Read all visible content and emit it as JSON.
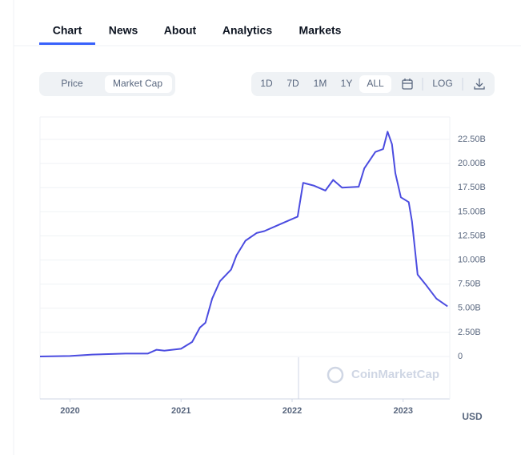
{
  "tabs": [
    "Chart",
    "News",
    "About",
    "Analytics",
    "Markets"
  ],
  "toggle": [
    "Price",
    "Market Cap"
  ],
  "ranges": [
    "1D",
    "7D",
    "1M",
    "1Y",
    "ALL"
  ],
  "log_label": "LOG",
  "chart_data": {
    "type": "line",
    "color": "#4b4ce0",
    "annotation": "CoinMarketCap",
    "y_label": "USD",
    "x": [
      2019.73,
      2020.0,
      2020.2,
      2020.5,
      2020.7,
      2020.78,
      2020.85,
      2021.0,
      2021.1,
      2021.17,
      2021.22,
      2021.28,
      2021.35,
      2021.45,
      2021.5,
      2021.58,
      2021.68,
      2021.75,
      2021.85,
      2021.95,
      2022.05,
      2022.1,
      2022.2,
      2022.3,
      2022.37,
      2022.45,
      2022.6,
      2022.65,
      2022.75,
      2022.82,
      2022.86,
      2022.9,
      2022.93,
      2022.98,
      2023.05,
      2023.08,
      2023.13,
      2023.2,
      2023.3,
      2023.4
    ],
    "values": [
      0,
      0.05,
      0.2,
      0.3,
      0.3,
      0.7,
      0.6,
      0.8,
      1.5,
      3,
      3.5,
      6,
      7.8,
      9,
      10.5,
      12,
      12.8,
      13,
      13.5,
      14,
      14.5,
      18,
      17.7,
      17.2,
      18.3,
      17.5,
      17.6,
      19.5,
      21.2,
      21.5,
      23.3,
      22.0,
      19.0,
      16.5,
      16.0,
      14.0,
      8.5,
      7.5,
      6.0,
      5.2
    ],
    "xlim": [
      2019.73,
      2023.42
    ],
    "xticks": [
      2020,
      2021,
      2022,
      2023
    ],
    "ylim": [
      -4.4,
      24.83
    ],
    "yticks": [
      0,
      {
        "value": 2.5,
        "label": "2.50B"
      },
      {
        "value": 5,
        "label": "5.00B"
      },
      {
        "value": 7.5,
        "label": "7.50B"
      },
      {
        "value": 10,
        "label": "10.00B"
      },
      {
        "value": 12.5,
        "label": "12.50B"
      },
      {
        "value": 15,
        "label": "15.00B"
      },
      {
        "value": 17.5,
        "label": "17.50B"
      },
      {
        "value": 20,
        "label": "20.00B"
      },
      {
        "value": 22.5,
        "label": "22.50B"
      }
    ],
    "grid": true
  }
}
